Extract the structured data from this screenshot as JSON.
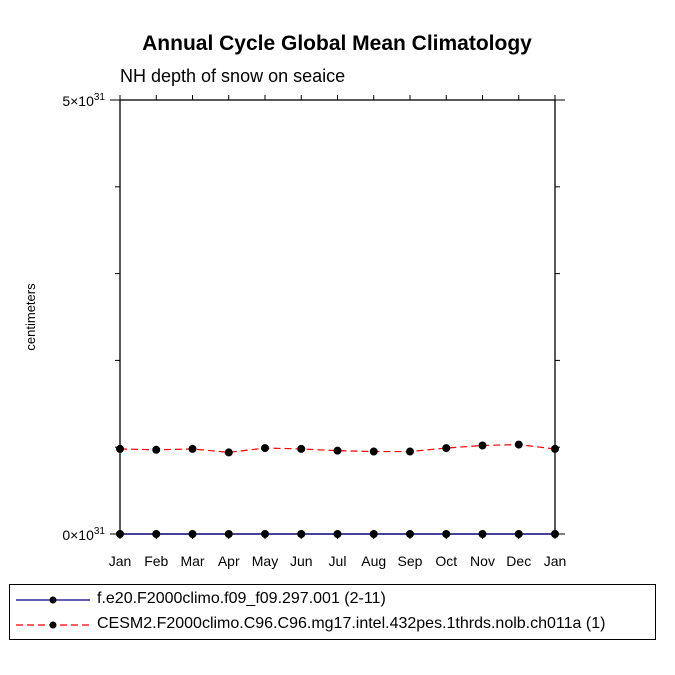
{
  "chart_data": {
    "type": "line",
    "title": "Annual Cycle Global Mean Climatology",
    "subtitle": "NH depth of snow on seaice",
    "xlabel": "",
    "ylabel": "centimeters",
    "categories": [
      "Jan",
      "Feb",
      "Mar",
      "Apr",
      "May",
      "Jun",
      "Jul",
      "Aug",
      "Sep",
      "Oct",
      "Nov",
      "Dec",
      "Jan"
    ],
    "ylim": [
      0,
      5
    ],
    "y_scale_exponent": 31,
    "y_tick_labels": [
      {
        "value": 0,
        "label": "0×10",
        "exp": "31"
      },
      {
        "value": 5,
        "label": "5×10",
        "exp": "31"
      }
    ],
    "y_minor_ticks": [
      1,
      2,
      3,
      4
    ],
    "series": [
      {
        "name": "f.e20.F2000climo.f09_f09.297.001 (2-11)",
        "color": "#00008b",
        "line_style": "solid",
        "marker": "circle",
        "values": [
          0,
          0,
          0,
          0,
          0,
          0,
          0,
          0,
          0,
          0,
          0,
          0,
          0
        ]
      },
      {
        "name": "CESM2.F2000climo.C96.C96.mg17.intel.432pes.1thrds.nolb.ch011a (1)",
        "color": "#ff0000",
        "line_style": "dashed",
        "marker": "circle",
        "values": [
          0.98,
          0.97,
          0.98,
          0.94,
          0.99,
          0.98,
          0.96,
          0.95,
          0.95,
          0.99,
          1.02,
          1.03,
          0.98
        ]
      }
    ]
  }
}
